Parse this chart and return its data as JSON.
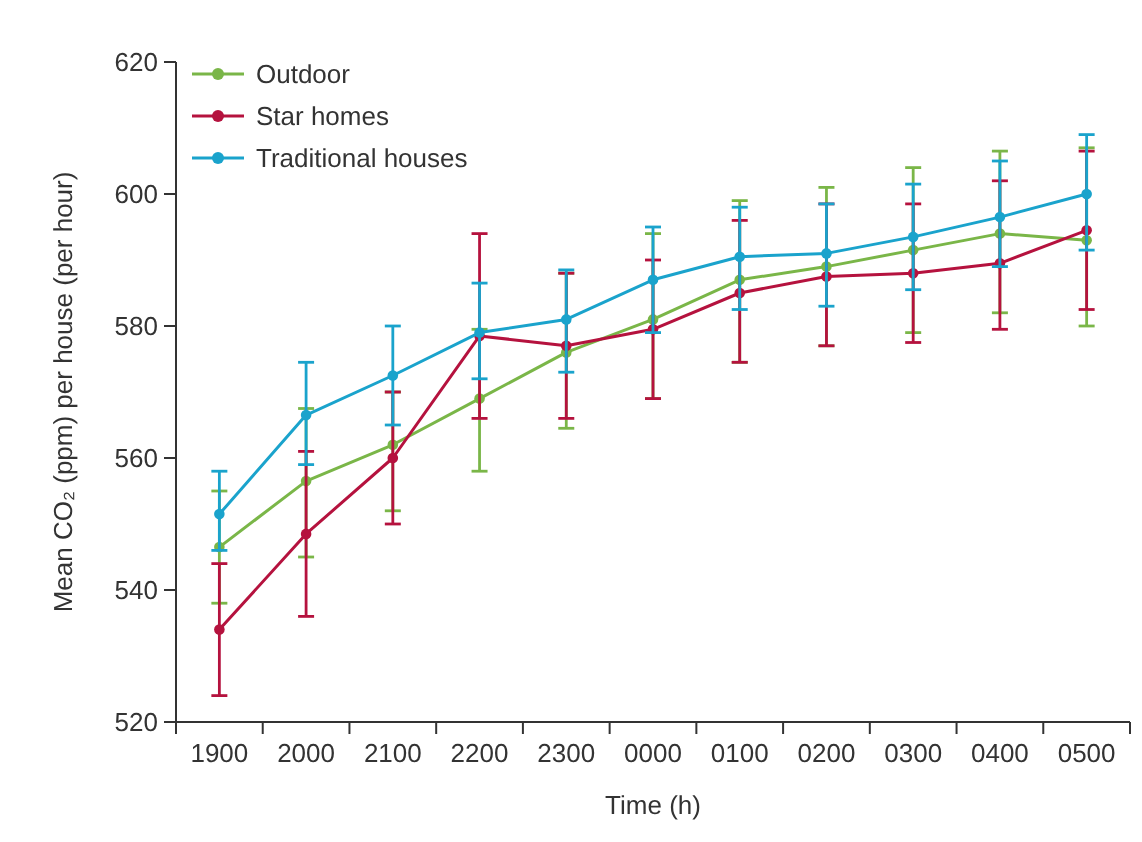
{
  "chart_data": {
    "type": "line",
    "xlabel": "Time (h)",
    "ylabel": "Mean CO₂ (ppm) per house (per hour)",
    "categories": [
      "1900",
      "2000",
      "2100",
      "2200",
      "2300",
      "0000",
      "0100",
      "0200",
      "0300",
      "0400",
      "0500"
    ],
    "ylim": [
      520,
      620
    ],
    "yticks": [
      520,
      540,
      560,
      580,
      600,
      620
    ],
    "grid": false,
    "legend": "top left",
    "marker": "circle",
    "line_style": "solid",
    "series": [
      {
        "name": "Outdoor",
        "color": "#7ab648",
        "values": [
          546.5,
          556.5,
          562,
          569,
          576,
          581,
          587,
          589,
          591.5,
          594,
          593
        ],
        "errors": [
          [
            538,
            555
          ],
          [
            545,
            567.5
          ],
          [
            552,
            570
          ],
          [
            558,
            579.5
          ],
          [
            564.5,
            588
          ],
          [
            569,
            594
          ],
          [
            574.5,
            599
          ],
          [
            577,
            601
          ],
          [
            579,
            604
          ],
          [
            582,
            606.5
          ],
          [
            580,
            607
          ]
        ]
      },
      {
        "name": "Star homes",
        "color": "#b5123e",
        "values": [
          534,
          548.5,
          560,
          578.5,
          577,
          579.5,
          585,
          587.5,
          588,
          589.5,
          594.5
        ],
        "errors": [
          [
            524,
            544
          ],
          [
            536,
            561
          ],
          [
            550,
            570
          ],
          [
            566,
            594
          ],
          [
            566,
            588
          ],
          [
            569,
            590
          ],
          [
            574.5,
            596
          ],
          [
            577,
            598.5
          ],
          [
            577.5,
            598.5
          ],
          [
            579.5,
            602
          ],
          [
            582.5,
            606.5
          ]
        ]
      },
      {
        "name": "Traditional houses",
        "color": "#1aa3cc",
        "values": [
          551.5,
          566.5,
          572.5,
          579,
          581,
          587,
          590.5,
          591,
          593.5,
          596.5,
          600
        ],
        "errors": [
          [
            546,
            558
          ],
          [
            559,
            574.5
          ],
          [
            565,
            580
          ],
          [
            572,
            586.5
          ],
          [
            573,
            588.5
          ],
          [
            579,
            595
          ],
          [
            582.5,
            598
          ],
          [
            583,
            598.5
          ],
          [
            585.5,
            601.5
          ],
          [
            589,
            605
          ],
          [
            591.5,
            609
          ]
        ]
      }
    ]
  }
}
